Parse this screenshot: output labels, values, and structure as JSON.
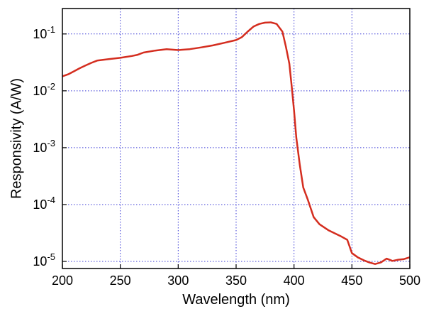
{
  "chart_data": {
    "type": "line",
    "xlabel": "Wavelength (nm)",
    "ylabel": "Responsivity (A/W)",
    "xlim": [
      200,
      500
    ],
    "ylim": [
      7.5e-06,
      0.28
    ],
    "yscale": "log",
    "grid": true,
    "grid_color": "#3b3bd6",
    "line_color": "#d42d1f",
    "x_ticks": [
      {
        "value": 200,
        "label": "200"
      },
      {
        "value": 250,
        "label": "250"
      },
      {
        "value": 300,
        "label": "300"
      },
      {
        "value": 350,
        "label": "350"
      },
      {
        "value": 400,
        "label": "400"
      },
      {
        "value": 450,
        "label": "450"
      },
      {
        "value": 500,
        "label": "500"
      }
    ],
    "y_ticks": [
      {
        "value": 1e-05,
        "base": "10",
        "exp": "-5"
      },
      {
        "value": 0.0001,
        "base": "10",
        "exp": "-4"
      },
      {
        "value": 0.001,
        "base": "10",
        "exp": "-3"
      },
      {
        "value": 0.01,
        "base": "10",
        "exp": "-2"
      },
      {
        "value": 0.1,
        "base": "10",
        "exp": "-1"
      }
    ],
    "series": [
      {
        "x": [
          200,
          205,
          210,
          215,
          220,
          225,
          230,
          240,
          250,
          260,
          265,
          270,
          280,
          290,
          295,
          300,
          310,
          320,
          330,
          340,
          350,
          355,
          360,
          365,
          370,
          375,
          380,
          385,
          390,
          393,
          396,
          398,
          400,
          402,
          405,
          408,
          412,
          417,
          422,
          430,
          440,
          446,
          450,
          455,
          460,
          465,
          470,
          475,
          480,
          485,
          490,
          495,
          500
        ],
        "y": [
          0.018,
          0.0195,
          0.022,
          0.025,
          0.028,
          0.031,
          0.034,
          0.036,
          0.038,
          0.041,
          0.043,
          0.047,
          0.051,
          0.054,
          0.053,
          0.052,
          0.054,
          0.058,
          0.063,
          0.07,
          0.078,
          0.088,
          0.11,
          0.135,
          0.15,
          0.158,
          0.16,
          0.15,
          0.11,
          0.06,
          0.03,
          0.012,
          0.0045,
          0.0015,
          0.0005,
          0.0002,
          0.00012,
          6e-05,
          4.5e-05,
          3.5e-05,
          2.8e-05,
          2.4e-05,
          1.4e-05,
          1.18e-05,
          1.05e-05,
          9.6e-06,
          9e-06,
          9.6e-06,
          1.12e-05,
          1.02e-05,
          1.07e-05,
          1.1e-05,
          1.18e-05
        ]
      }
    ]
  }
}
